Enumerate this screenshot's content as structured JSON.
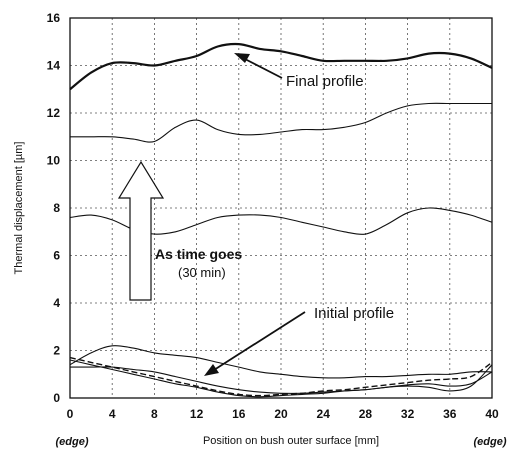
{
  "chart_data": {
    "type": "line",
    "xlabel": "Position on bush outer surface [mm]",
    "ylabel": "Thermal displacement [µm]",
    "xlim": [
      0,
      40
    ],
    "ylim": [
      0,
      16
    ],
    "xticks": [
      "0",
      "4",
      "8",
      "12",
      "16",
      "20",
      "24",
      "28",
      "32",
      "36",
      "40"
    ],
    "yticks": [
      "0",
      "2",
      "4",
      "6",
      "8",
      "10",
      "12",
      "14",
      "16"
    ],
    "grid": true,
    "edge_labels": [
      "(edge)",
      "(edge)"
    ],
    "annotations": {
      "final": "Final profile",
      "initial": "Initial profile",
      "time": "As time goes",
      "duration": "(30 min)"
    },
    "series": [
      {
        "style": "solid-bold",
        "x": [
          0,
          2,
          4,
          6,
          8,
          10,
          12,
          14,
          16,
          18,
          20,
          22,
          24,
          26,
          28,
          30,
          32,
          34,
          36,
          38,
          40
        ],
        "y": [
          13.0,
          13.7,
          14.1,
          14.1,
          14.0,
          14.2,
          14.4,
          14.8,
          14.9,
          14.7,
          14.6,
          14.4,
          14.2,
          14.2,
          14.2,
          14.2,
          14.3,
          14.5,
          14.5,
          14.3,
          13.9
        ]
      },
      {
        "style": "solid",
        "x": [
          0,
          2,
          4,
          6,
          8,
          10,
          12,
          14,
          16,
          18,
          20,
          22,
          24,
          26,
          28,
          30,
          32,
          34,
          36,
          38,
          40
        ],
        "y": [
          11.0,
          11.0,
          11.0,
          10.9,
          10.8,
          11.4,
          11.7,
          11.3,
          11.1,
          11.1,
          11.2,
          11.3,
          11.3,
          11.4,
          11.6,
          12.0,
          12.3,
          12.4,
          12.4,
          12.4,
          12.4
        ]
      },
      {
        "style": "solid",
        "x": [
          0,
          2,
          4,
          6,
          8,
          10,
          12,
          14,
          16,
          18,
          20,
          22,
          24,
          26,
          28,
          30,
          32,
          34,
          36,
          38,
          40
        ],
        "y": [
          7.6,
          7.7,
          7.5,
          7.1,
          6.9,
          7.0,
          7.3,
          7.6,
          7.7,
          7.7,
          7.6,
          7.4,
          7.2,
          7.0,
          6.9,
          7.3,
          7.8,
          8.0,
          7.9,
          7.7,
          7.4
        ]
      },
      {
        "style": "solid",
        "x": [
          0,
          2,
          4,
          6,
          8,
          10,
          12,
          14,
          16,
          18,
          20,
          22,
          24,
          26,
          28,
          30,
          32,
          34,
          36,
          38,
          40
        ],
        "y": [
          1.4,
          1.9,
          2.2,
          2.1,
          1.9,
          1.8,
          1.7,
          1.5,
          1.3,
          1.1,
          1.0,
          0.9,
          0.85,
          0.85,
          0.9,
          0.9,
          0.95,
          1.0,
          1.0,
          1.1,
          1.1
        ]
      },
      {
        "style": "solid",
        "x": [
          0,
          2,
          4,
          6,
          8,
          10,
          12,
          14,
          16,
          18,
          20,
          22,
          24,
          26,
          28,
          30,
          32,
          34,
          36,
          38,
          40
        ],
        "y": [
          1.3,
          1.3,
          1.3,
          1.2,
          1.1,
          0.9,
          0.7,
          0.5,
          0.35,
          0.25,
          0.2,
          0.2,
          0.25,
          0.3,
          0.35,
          0.45,
          0.55,
          0.6,
          0.5,
          0.6,
          1.1
        ]
      },
      {
        "style": "dashed",
        "x": [
          0,
          2,
          4,
          6,
          8,
          10,
          12,
          14,
          16,
          18,
          20,
          22,
          24,
          26,
          28,
          30,
          32,
          34,
          36,
          38,
          40
        ],
        "y": [
          1.7,
          1.5,
          1.3,
          1.1,
          0.9,
          0.7,
          0.5,
          0.3,
          0.15,
          0.1,
          0.15,
          0.2,
          0.3,
          0.35,
          0.45,
          0.55,
          0.65,
          0.75,
          0.8,
          0.9,
          1.5
        ]
      },
      {
        "style": "solid",
        "x": [
          0,
          2,
          4,
          6,
          8,
          10,
          12,
          14,
          16,
          18,
          20,
          22,
          24,
          26,
          28,
          30,
          32,
          34,
          36,
          38,
          40
        ],
        "y": [
          1.6,
          1.4,
          1.2,
          1.0,
          0.8,
          0.6,
          0.45,
          0.25,
          0.1,
          0.05,
          0.1,
          0.15,
          0.2,
          0.3,
          0.35,
          0.45,
          0.5,
          0.45,
          0.3,
          0.5,
          1.4
        ]
      }
    ]
  }
}
